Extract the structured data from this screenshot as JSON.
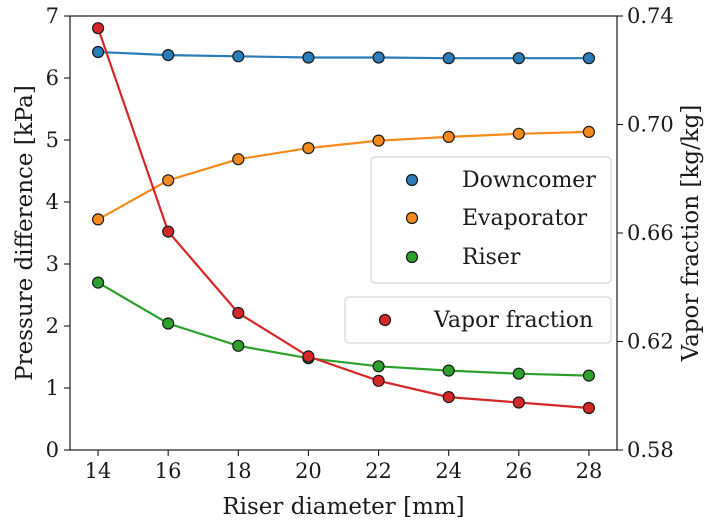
{
  "chart_data": {
    "type": "line",
    "xlabel": "Riser diameter [mm]",
    "ylabel_left": "Pressure difference [kPa]",
    "ylabel_right": "Vapor fraction [kg/kg]",
    "x": [
      14,
      16,
      18,
      20,
      22,
      24,
      26,
      28
    ],
    "xlim": [
      13.2,
      28.8
    ],
    "ylim_left": [
      0,
      7
    ],
    "ylim_right": [
      0.58,
      0.74
    ],
    "xticks": [
      "14",
      "16",
      "18",
      "20",
      "22",
      "24",
      "26",
      "28"
    ],
    "yticks_left": [
      "0",
      "1",
      "2",
      "3",
      "4",
      "5",
      "6",
      "7"
    ],
    "yticks_right": [
      "0.58",
      "0.62",
      "0.66",
      "0.70",
      "0.74"
    ],
    "grid": false,
    "series": [
      {
        "name": "Downcomer",
        "axis": "left",
        "color": "#2a7db8",
        "values": [
          6.42,
          6.37,
          6.35,
          6.33,
          6.33,
          6.32,
          6.32,
          6.32
        ]
      },
      {
        "name": "Evaporator",
        "axis": "left",
        "color": "#f68a1d",
        "values": [
          3.72,
          4.35,
          4.69,
          4.87,
          4.99,
          5.05,
          5.1,
          5.13
        ]
      },
      {
        "name": "Riser",
        "axis": "left",
        "color": "#2ca02c",
        "values": [
          2.7,
          2.04,
          1.68,
          1.48,
          1.35,
          1.28,
          1.23,
          1.2
        ]
      },
      {
        "name": "Vapor fraction",
        "axis": "right",
        "color": "#d62728",
        "values": [
          0.7355,
          0.6605,
          0.6305,
          0.6145,
          0.6055,
          0.5995,
          0.5975,
          0.5955
        ]
      }
    ],
    "legends": [
      {
        "placement": "center-right",
        "entries": [
          "Downcomer",
          "Evaporator",
          "Riser"
        ]
      },
      {
        "placement": "right",
        "entries": [
          "Vapor fraction"
        ]
      }
    ]
  }
}
